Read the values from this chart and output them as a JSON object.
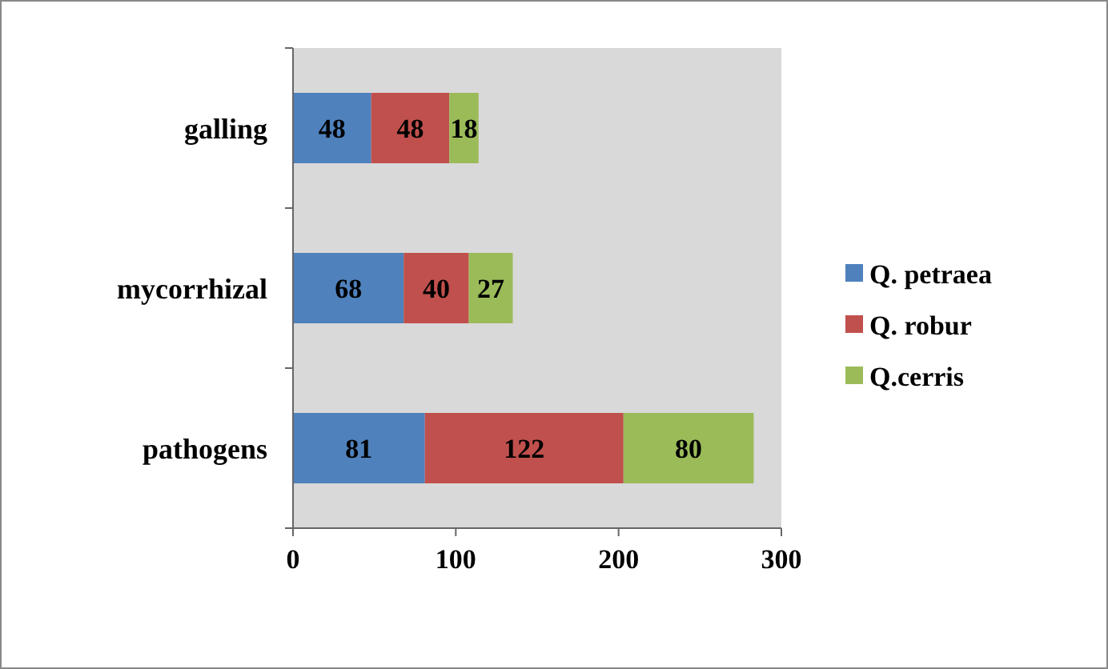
{
  "chart_data": {
    "type": "bar",
    "orientation": "horizontal",
    "stacked": true,
    "categories": [
      "galling",
      "mycorrhizal",
      "pathogens"
    ],
    "series": [
      {
        "name": "Q. petraea",
        "color": "#4f81bd",
        "values": [
          48,
          68,
          81
        ]
      },
      {
        "name": "Q. robur",
        "color": "#c0504d",
        "values": [
          48,
          40,
          122
        ]
      },
      {
        "name": "Q.cerris",
        "color": "#9bbb59",
        "values": [
          18,
          27,
          80
        ]
      }
    ],
    "xlim": [
      0,
      300
    ],
    "xticks": [
      0,
      100,
      200,
      300
    ],
    "data_labels": true,
    "legend": "right",
    "grid": false
  }
}
